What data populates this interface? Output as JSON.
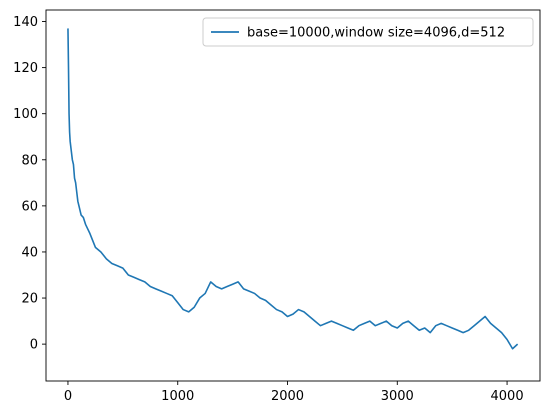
{
  "chart_data": {
    "type": "line",
    "title": "",
    "xlabel": "",
    "ylabel": "",
    "xlim": [
      -200,
      4300
    ],
    "ylim": [
      -16,
      145
    ],
    "xticks": [
      0,
      1000,
      2000,
      3000,
      4000
    ],
    "yticks": [
      0,
      20,
      40,
      60,
      80,
      100,
      120,
      140
    ],
    "xtick_labels": [
      "0",
      "1000",
      "2000",
      "3000",
      "4000"
    ],
    "ytick_labels": [
      "0",
      "20",
      "40",
      "60",
      "80",
      "100",
      "120",
      "140"
    ],
    "grid": false,
    "legend_position": "top-right",
    "series": [
      {
        "name": "base=10000,window size=4096,d=512",
        "color": "#1f77b4",
        "x": [
          0,
          5,
          10,
          15,
          20,
          30,
          40,
          50,
          60,
          70,
          80,
          90,
          100,
          120,
          140,
          160,
          180,
          200,
          250,
          300,
          350,
          400,
          450,
          500,
          550,
          600,
          650,
          700,
          750,
          800,
          850,
          900,
          950,
          1000,
          1050,
          1100,
          1150,
          1200,
          1250,
          1300,
          1350,
          1400,
          1450,
          1500,
          1550,
          1600,
          1650,
          1700,
          1750,
          1800,
          1850,
          1900,
          1950,
          2000,
          2050,
          2100,
          2150,
          2200,
          2250,
          2300,
          2350,
          2400,
          2450,
          2500,
          2550,
          2600,
          2650,
          2700,
          2750,
          2800,
          2850,
          2900,
          2950,
          3000,
          3050,
          3100,
          3150,
          3200,
          3250,
          3300,
          3350,
          3400,
          3450,
          3500,
          3550,
          3600,
          3650,
          3700,
          3750,
          3800,
          3850,
          3900,
          3950,
          4000,
          4050,
          4096
        ],
        "values": [
          137,
          120,
          100,
          92,
          88,
          84,
          80,
          78,
          72,
          70,
          66,
          62,
          60,
          56,
          55,
          52,
          50,
          48,
          42,
          40,
          37,
          35,
          34,
          33,
          30,
          29,
          28,
          27,
          25,
          24,
          23,
          22,
          21,
          18,
          15,
          14,
          16,
          20,
          22,
          27,
          25,
          24,
          25,
          26,
          27,
          24,
          23,
          22,
          20,
          19,
          17,
          15,
          14,
          12,
          13,
          15,
          14,
          12,
          10,
          8,
          9,
          10,
          9,
          8,
          7,
          6,
          8,
          9,
          10,
          8,
          9,
          10,
          8,
          7,
          9,
          10,
          8,
          6,
          7,
          5,
          8,
          9,
          8,
          7,
          6,
          5,
          6,
          8,
          10,
          12,
          9,
          7,
          5,
          2,
          -2,
          0
        ]
      }
    ]
  }
}
